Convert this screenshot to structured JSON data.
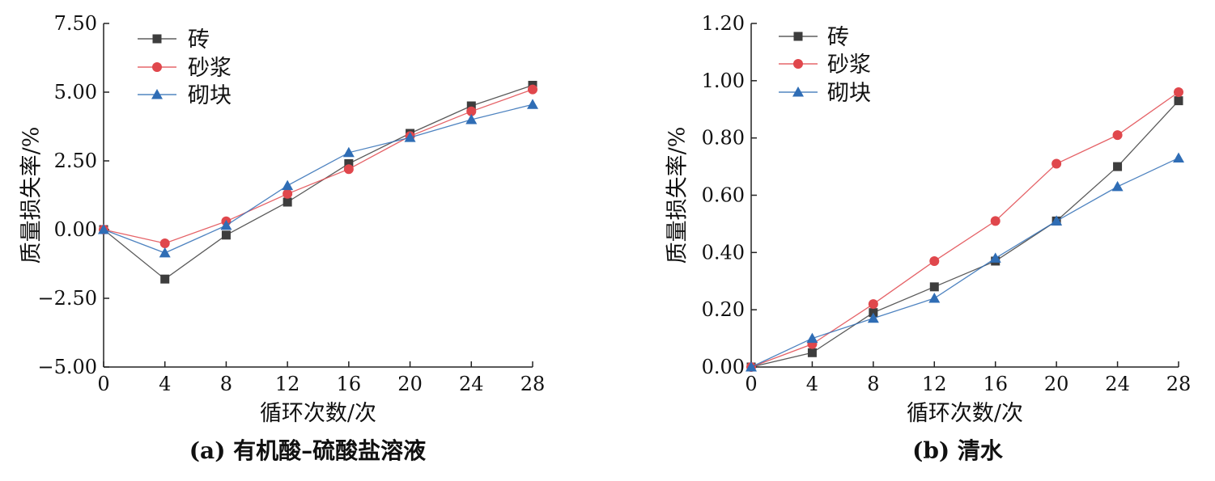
{
  "chart_data": [
    {
      "type": "line",
      "title": "(a) 有机酸–硫酸盐溶液",
      "xlabel": "循环次数/次",
      "ylabel": "质量损失率/%",
      "x": [
        0,
        4,
        8,
        12,
        16,
        20,
        24,
        28
      ],
      "xticks": [
        "0",
        "4",
        "8",
        "12",
        "16",
        "20",
        "24",
        "28"
      ],
      "xlim": [
        0,
        28
      ],
      "ylim": [
        -5.0,
        7.5
      ],
      "yticks": [
        -5.0,
        -2.5,
        0.0,
        2.5,
        5.0,
        7.5
      ],
      "ytick_labels": [
        "−5.00",
        "−2.50",
        "0.00",
        "2.50",
        "5.00",
        "7.50"
      ],
      "legend_position": "top-left",
      "grid": false,
      "series": [
        {
          "name": "砖",
          "marker": "square",
          "color": "#3d3d3d",
          "values": [
            0.0,
            -1.8,
            -0.2,
            1.0,
            2.4,
            3.5,
            4.5,
            5.25
          ]
        },
        {
          "name": "砂浆",
          "marker": "circle",
          "color": "#e0474c",
          "values": [
            0.0,
            -0.5,
            0.3,
            1.3,
            2.2,
            3.4,
            4.3,
            5.1
          ]
        },
        {
          "name": "砌块",
          "marker": "triangle",
          "color": "#2f6db5",
          "values": [
            0.0,
            -0.85,
            0.15,
            1.6,
            2.8,
            3.35,
            4.0,
            4.55
          ]
        }
      ]
    },
    {
      "type": "line",
      "title": "(b) 清水",
      "xlabel": "循环次数/次",
      "ylabel": "质量损失率/%",
      "x": [
        0,
        4,
        8,
        12,
        16,
        20,
        24,
        28
      ],
      "xticks": [
        "0",
        "4",
        "8",
        "12",
        "16",
        "20",
        "24",
        "28"
      ],
      "xlim": [
        0,
        28
      ],
      "ylim": [
        0.0,
        1.2
      ],
      "yticks": [
        0.0,
        0.2,
        0.4,
        0.6,
        0.8,
        1.0,
        1.2
      ],
      "ytick_labels": [
        "0.00",
        "0.20",
        "0.40",
        "0.60",
        "0.80",
        "1.00",
        "1.20"
      ],
      "legend_position": "top-left",
      "grid": false,
      "series": [
        {
          "name": "砖",
          "marker": "square",
          "color": "#3d3d3d",
          "values": [
            0.0,
            0.05,
            0.19,
            0.28,
            0.37,
            0.51,
            0.7,
            0.93
          ]
        },
        {
          "name": "砂浆",
          "marker": "circle",
          "color": "#e0474c",
          "values": [
            0.0,
            0.08,
            0.22,
            0.37,
            0.51,
            0.71,
            0.81,
            0.96
          ]
        },
        {
          "name": "砌块",
          "marker": "triangle",
          "color": "#2f6db5",
          "values": [
            0.0,
            0.1,
            0.17,
            0.24,
            0.38,
            0.51,
            0.63,
            0.73
          ]
        }
      ]
    }
  ]
}
